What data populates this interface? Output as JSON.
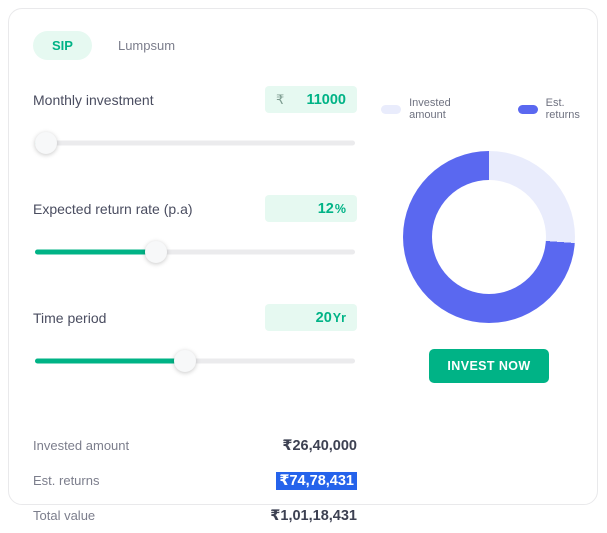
{
  "tabs": [
    {
      "label": "SIP",
      "active": true
    },
    {
      "label": "Lumpsum",
      "active": false
    }
  ],
  "inputs": [
    {
      "label": "Monthly investment",
      "prefix": "₹",
      "value": "11000",
      "suffix": "",
      "slider_pct": 4
    },
    {
      "label": "Expected return rate (p.a)",
      "prefix": "",
      "value": "12",
      "suffix": "%",
      "slider_pct": 38
    },
    {
      "label": "Time period",
      "prefix": "",
      "value": "20",
      "suffix": "Yr",
      "slider_pct": 47
    }
  ],
  "summary": {
    "rows": [
      {
        "label": "Invested amount",
        "value": "₹26,40,000",
        "highlighted": false
      },
      {
        "label": "Est. returns",
        "value": "₹74,78,431",
        "highlighted": true
      },
      {
        "label": "Total value",
        "value": "₹1,01,18,431",
        "highlighted": false
      }
    ]
  },
  "legend": [
    {
      "label": "Invested amount",
      "color": "#e9ecfc"
    },
    {
      "label": "Est. returns",
      "color": "#5a68f0"
    }
  ],
  "chart_data": {
    "type": "pie",
    "donut": true,
    "labels": [
      "Invested amount",
      "Est. returns"
    ],
    "values": [
      2640000,
      7478431
    ],
    "percentages": [
      26.1,
      73.9
    ],
    "colors": [
      "#e9ecfc",
      "#5a68f0"
    ],
    "total_value": 10118431,
    "start_angle_deg": 0,
    "legend_position": "top"
  },
  "cta": {
    "label": "INVEST NOW"
  },
  "colors": {
    "accent_green": "#00b386",
    "light_green_bg": "#e6f9f1",
    "selection_blue": "#2563eb",
    "track_gray": "#ebebed",
    "label_dark": "#4a4d60",
    "label_gray": "#7c7e8c"
  }
}
